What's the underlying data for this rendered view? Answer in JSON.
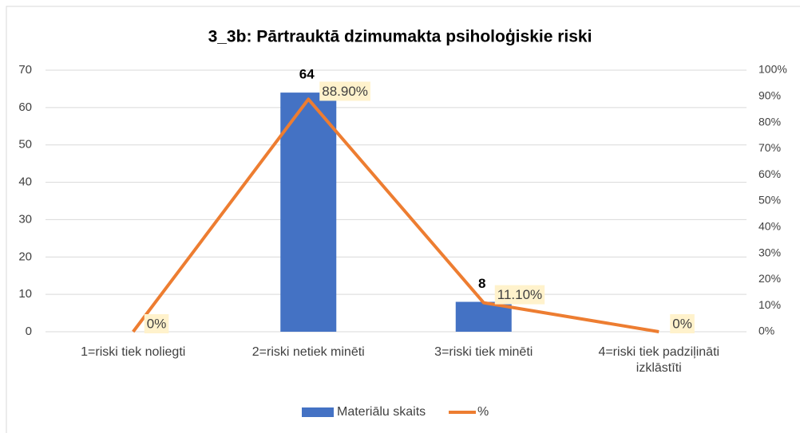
{
  "chart_data": {
    "type": "combo",
    "title": "3_3b: Pārtrauktā  dzimumakta psiholoģiskie riski",
    "categories": [
      "1=riski tiek noliegti",
      "2=riski netiek minēti",
      "3=riski tiek minēti",
      "4=riski tiek padziļināti izklāstīti"
    ],
    "series": [
      {
        "name": "Materiālu skaits",
        "type": "bar",
        "color": "#4472c4",
        "values": [
          null,
          64,
          8,
          null
        ]
      },
      {
        "name": "%",
        "type": "line",
        "axis": "y2",
        "color": "#ed7d31",
        "values": [
          0,
          88.9,
          11.1,
          0
        ],
        "value_labels": [
          "0%",
          "88.90%",
          "11.10%",
          "0%"
        ]
      }
    ],
    "ylim": [
      0,
      70
    ],
    "yticks": [
      0,
      10,
      20,
      30,
      40,
      50,
      60,
      70
    ],
    "y2lim": [
      0,
      100
    ],
    "y2ticks": [
      {
        "value": 0,
        "label": "0%"
      },
      {
        "value": 10,
        "label": "10%"
      },
      {
        "value": 20,
        "label": "20%"
      },
      {
        "value": 30,
        "label": "30%"
      },
      {
        "value": 40,
        "label": "40%"
      },
      {
        "value": 50,
        "label": "50%"
      },
      {
        "value": 60,
        "label": "60%"
      },
      {
        "value": 70,
        "label": "70%"
      },
      {
        "value": 80,
        "label": "80%"
      },
      {
        "value": 90,
        "label": "90%"
      },
      {
        "value": 100,
        "label": "100%"
      }
    ],
    "grid": true,
    "legend": "bottom"
  }
}
